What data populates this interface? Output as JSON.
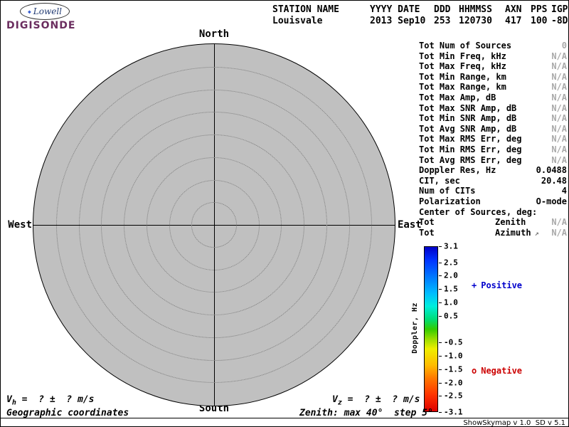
{
  "chart_data": {
    "type": "scatter",
    "projection": "polar_skymap",
    "description": "Digisonde skymap of echo sources; no sources plotted in this record",
    "num_sources": 0,
    "points": [],
    "compass_labels": [
      "North",
      "East",
      "South",
      "West"
    ],
    "zenith_max_deg": 40,
    "zenith_step_deg": 5,
    "zenith_rings_deg": [
      5,
      10,
      15,
      20,
      25,
      30,
      35,
      40
    ],
    "plot_fill_color": "#c0c0c0",
    "colorbar": {
      "label": "Doppler, Hz",
      "min": -3.1,
      "max": 3.1,
      "tick_values": [
        3.1,
        2.5,
        2.0,
        1.5,
        1.0,
        0.5,
        -0.5,
        -1.0,
        -1.5,
        -2.0,
        -2.5,
        -3.1
      ]
    },
    "legend": [
      {
        "marker": "+",
        "label": "Positive",
        "color": "#0000cc"
      },
      {
        "marker": "o",
        "label": "Negative",
        "color": "#cc0000"
      }
    ]
  },
  "logo": {
    "diamond": "◆",
    "lowell": "Lowell",
    "digisonde": "DIGISONDE"
  },
  "header": {
    "columns": [
      {
        "label": "STATION NAME",
        "value": "Louisvale"
      },
      {
        "label": "YYYY DATE",
        "value": "2013 Sep10"
      },
      {
        "label": "DDD",
        "value": "253"
      },
      {
        "label": "HHMMSS",
        "value": "120730"
      },
      {
        "label": "AXN",
        "value": "417"
      },
      {
        "label": "PPS",
        "value": "100"
      },
      {
        "label": "IGP",
        "value": "-8D"
      }
    ]
  },
  "stats": {
    "rows": [
      {
        "label": "Tot Num of Sources",
        "value": "0",
        "muted": true
      },
      {
        "label": "Tot Min Freq, kHz",
        "value": "N/A",
        "muted": true
      },
      {
        "label": "Tot Max Freq, kHz",
        "value": "N/A",
        "muted": true
      },
      {
        "label": "Tot Min Range, km",
        "value": "N/A",
        "muted": true
      },
      {
        "label": "Tot Max Range, km",
        "value": "N/A",
        "muted": true
      },
      {
        "label": "Tot Max Amp, dB",
        "value": "N/A",
        "muted": true
      },
      {
        "label": "Tot Max SNR Amp, dB",
        "value": "N/A",
        "muted": true
      },
      {
        "label": "Tot Min SNR Amp, dB",
        "value": "N/A",
        "muted": true
      },
      {
        "label": "Tot Avg SNR Amp, dB",
        "value": "N/A",
        "muted": true
      },
      {
        "label": "Tot Max RMS Err, deg",
        "value": "N/A",
        "muted": true
      },
      {
        "label": "Tot Min RMS Err, deg",
        "value": "N/A",
        "muted": true
      },
      {
        "label": "Tot Avg RMS Err, deg",
        "value": "N/A",
        "muted": true
      },
      {
        "label": "Doppler Res, Hz",
        "value": "0.0488",
        "muted": false
      },
      {
        "label": "CIT, sec",
        "value": "20.48",
        "muted": false
      },
      {
        "label": "Num of CITs",
        "value": "4",
        "muted": false
      },
      {
        "label": "Polarization",
        "value": "O-mode",
        "muted": false
      }
    ],
    "center_header": "Center of Sources, deg:",
    "center_rows": [
      {
        "label": "Tot",
        "mid": "Zenith",
        "value": "N/A"
      },
      {
        "label": "Tot",
        "mid": "Azimuth",
        "icon": "↗",
        "value": "N/A"
      }
    ]
  },
  "colorbar": {
    "title": "Doppler, Hz",
    "ticks": [
      "3.1",
      "2.5",
      "2.0",
      "1.5",
      "1.0",
      "0.5",
      "-0.5",
      "-1.0",
      "-1.5",
      "-2.0",
      "-2.5",
      "-3.1"
    ],
    "positive": {
      "marker": "+",
      "label": "Positive",
      "color": "#0000cc"
    },
    "negative": {
      "marker": "o",
      "label": "Negative",
      "color": "#cc0000"
    }
  },
  "footer": {
    "vh_prefix": "V",
    "vh_sub": "h",
    "vh_rest": " =  ? ±  ? m/s",
    "vz_prefix": "V",
    "vz_sub": "z",
    "vz_rest": " =  ? ±  ? m/s",
    "coords": "Geographic coordinates",
    "zenith_note": "Zenith: max 40°  step 5°",
    "version": "ShowSkymap v 1.0  SD v 5.1"
  }
}
